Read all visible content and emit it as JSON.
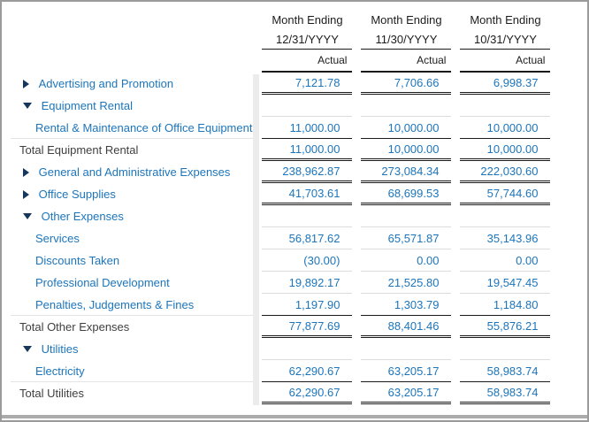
{
  "report": {
    "columns": [
      {
        "period_label": "Month Ending",
        "period_date": "12/31/YYYY",
        "measure": "Actual"
      },
      {
        "period_label": "Month Ending",
        "period_date": "11/30/YYYY",
        "measure": "Actual"
      },
      {
        "period_label": "Month Ending",
        "period_date": "10/31/YYYY",
        "measure": "Actual"
      }
    ],
    "rows": [
      {
        "label": "Advertising and Promotion",
        "type": "collapsed-group",
        "values": [
          "7,121.78",
          "7,706.66",
          "6,998.37"
        ]
      },
      {
        "label": "Equipment Rental",
        "type": "expanded-group",
        "values": [
          "",
          "",
          ""
        ]
      },
      {
        "label": "Rental & Maintenance of Office Equipment",
        "type": "detail",
        "values": [
          "11,000.00",
          "10,000.00",
          "10,000.00"
        ]
      },
      {
        "label": "Total Equipment Rental",
        "type": "total",
        "values": [
          "11,000.00",
          "10,000.00",
          "10,000.00"
        ]
      },
      {
        "label": "General and Administrative Expenses",
        "type": "collapsed-group",
        "values": [
          "238,962.87",
          "273,084.34",
          "222,030.60"
        ]
      },
      {
        "label": "Office Supplies",
        "type": "collapsed-group",
        "values": [
          "41,703.61",
          "68,699.53",
          "57,744.60"
        ]
      },
      {
        "label": "Other Expenses",
        "type": "expanded-group",
        "values": [
          "",
          "",
          ""
        ]
      },
      {
        "label": "Services",
        "type": "detail",
        "values": [
          "56,817.62",
          "65,571.87",
          "35,143.96"
        ]
      },
      {
        "label": "Discounts Taken",
        "type": "detail",
        "values": [
          "(30.00)",
          "0.00",
          "0.00"
        ]
      },
      {
        "label": "Professional Development",
        "type": "detail",
        "values": [
          "19,892.17",
          "21,525.80",
          "19,547.45"
        ]
      },
      {
        "label": "Penalties, Judgements & Fines",
        "type": "detail",
        "values": [
          "1,197.90",
          "1,303.79",
          "1,184.80"
        ]
      },
      {
        "label": "Total Other Expenses",
        "type": "total",
        "values": [
          "77,877.69",
          "88,401.46",
          "55,876.21"
        ]
      },
      {
        "label": "Utilities",
        "type": "expanded-group",
        "values": [
          "",
          "",
          ""
        ]
      },
      {
        "label": "Electricity",
        "type": "detail",
        "values": [
          "62,290.67",
          "63,205.17",
          "58,983.74"
        ]
      },
      {
        "label": "Total Utilities",
        "type": "total",
        "values": [
          "62,290.67",
          "63,205.17",
          "58,983.74"
        ]
      }
    ],
    "colors": {
      "link_blue": "#1c75bb",
      "triangle_navy": "#16365c",
      "total_text": "#3f3f3f",
      "rule_dark": "#1a1a1a",
      "rule_light": "#dcdcdc",
      "frame_gray": "#9b9b9b"
    }
  }
}
